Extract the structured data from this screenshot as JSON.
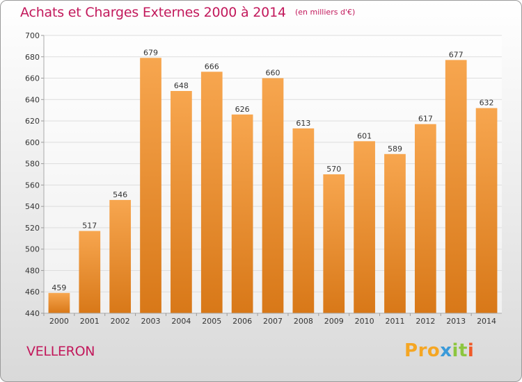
{
  "header": {
    "title": "Achats et Charges Externes 2000 à 2014",
    "unit": "(en milliers d'€)"
  },
  "footer": {
    "commune": "VELLERON",
    "brand": "Proxiti"
  },
  "colors": {
    "title": "#c2185b",
    "bar_light": "#f7a64f",
    "bar_dark": "#d87818",
    "grid": "#dddddd",
    "axis_text": "#333333"
  },
  "chart_data": {
    "type": "bar",
    "title": "Achats et Charges Externes 2000 à 2014",
    "subtitle": "(en milliers d'€)",
    "xlabel": "",
    "ylabel": "",
    "ylim": [
      440,
      700
    ],
    "yticks": [
      440,
      460,
      480,
      500,
      520,
      540,
      560,
      580,
      600,
      620,
      640,
      660,
      680,
      700
    ],
    "grid": true,
    "categories": [
      "2000",
      "2001",
      "2002",
      "2003",
      "2004",
      "2005",
      "2006",
      "2007",
      "2008",
      "2009",
      "2010",
      "2011",
      "2012",
      "2013",
      "2014"
    ],
    "values": [
      459,
      517,
      546,
      679,
      648,
      666,
      626,
      660,
      613,
      570,
      601,
      589,
      617,
      677,
      632
    ],
    "data_labels": true
  }
}
